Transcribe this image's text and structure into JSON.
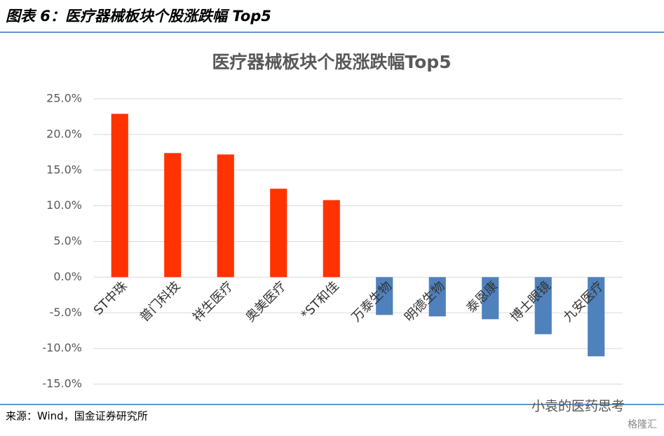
{
  "header": {
    "title": "图表 6：医疗器械板块个股涨跌幅 Top5"
  },
  "chart_data": {
    "type": "bar",
    "title": "医疗器械板块个股涨跌幅Top5",
    "categories": [
      "ST中珠",
      "普门科技",
      "祥生医疗",
      "奥美医疗",
      "*ST和佳",
      "万泰生物",
      "明德生物",
      "泰恩康",
      "博士眼镜",
      "九安医疗"
    ],
    "values": [
      22.9,
      17.4,
      17.2,
      12.4,
      10.8,
      -5.3,
      -5.5,
      -5.9,
      -8.0,
      -11.1
    ],
    "colors": [
      "#ff3300",
      "#ff3300",
      "#ff3300",
      "#ff3300",
      "#ff3300",
      "#4f81bd",
      "#4f81bd",
      "#4f81bd",
      "#4f81bd",
      "#4f81bd"
    ],
    "ylim": [
      -15,
      25
    ],
    "yticks": [
      {
        "value": -15,
        "label": "-15.0%"
      },
      {
        "value": -10,
        "label": "-10.0%"
      },
      {
        "value": -5,
        "label": "-5.0%"
      },
      {
        "value": 0,
        "label": "0.0%"
      },
      {
        "value": 5,
        "label": "5.0%"
      },
      {
        "value": 10,
        "label": "10.0%"
      },
      {
        "value": 15,
        "label": "15.0%"
      },
      {
        "value": 20,
        "label": "20.0%"
      },
      {
        "value": 25,
        "label": "25.0%"
      }
    ],
    "grid": true
  },
  "footer": {
    "source": "来源：Wind，国金证券研究所",
    "watermark": "小袁的医药思考",
    "logo": "格隆汇"
  }
}
